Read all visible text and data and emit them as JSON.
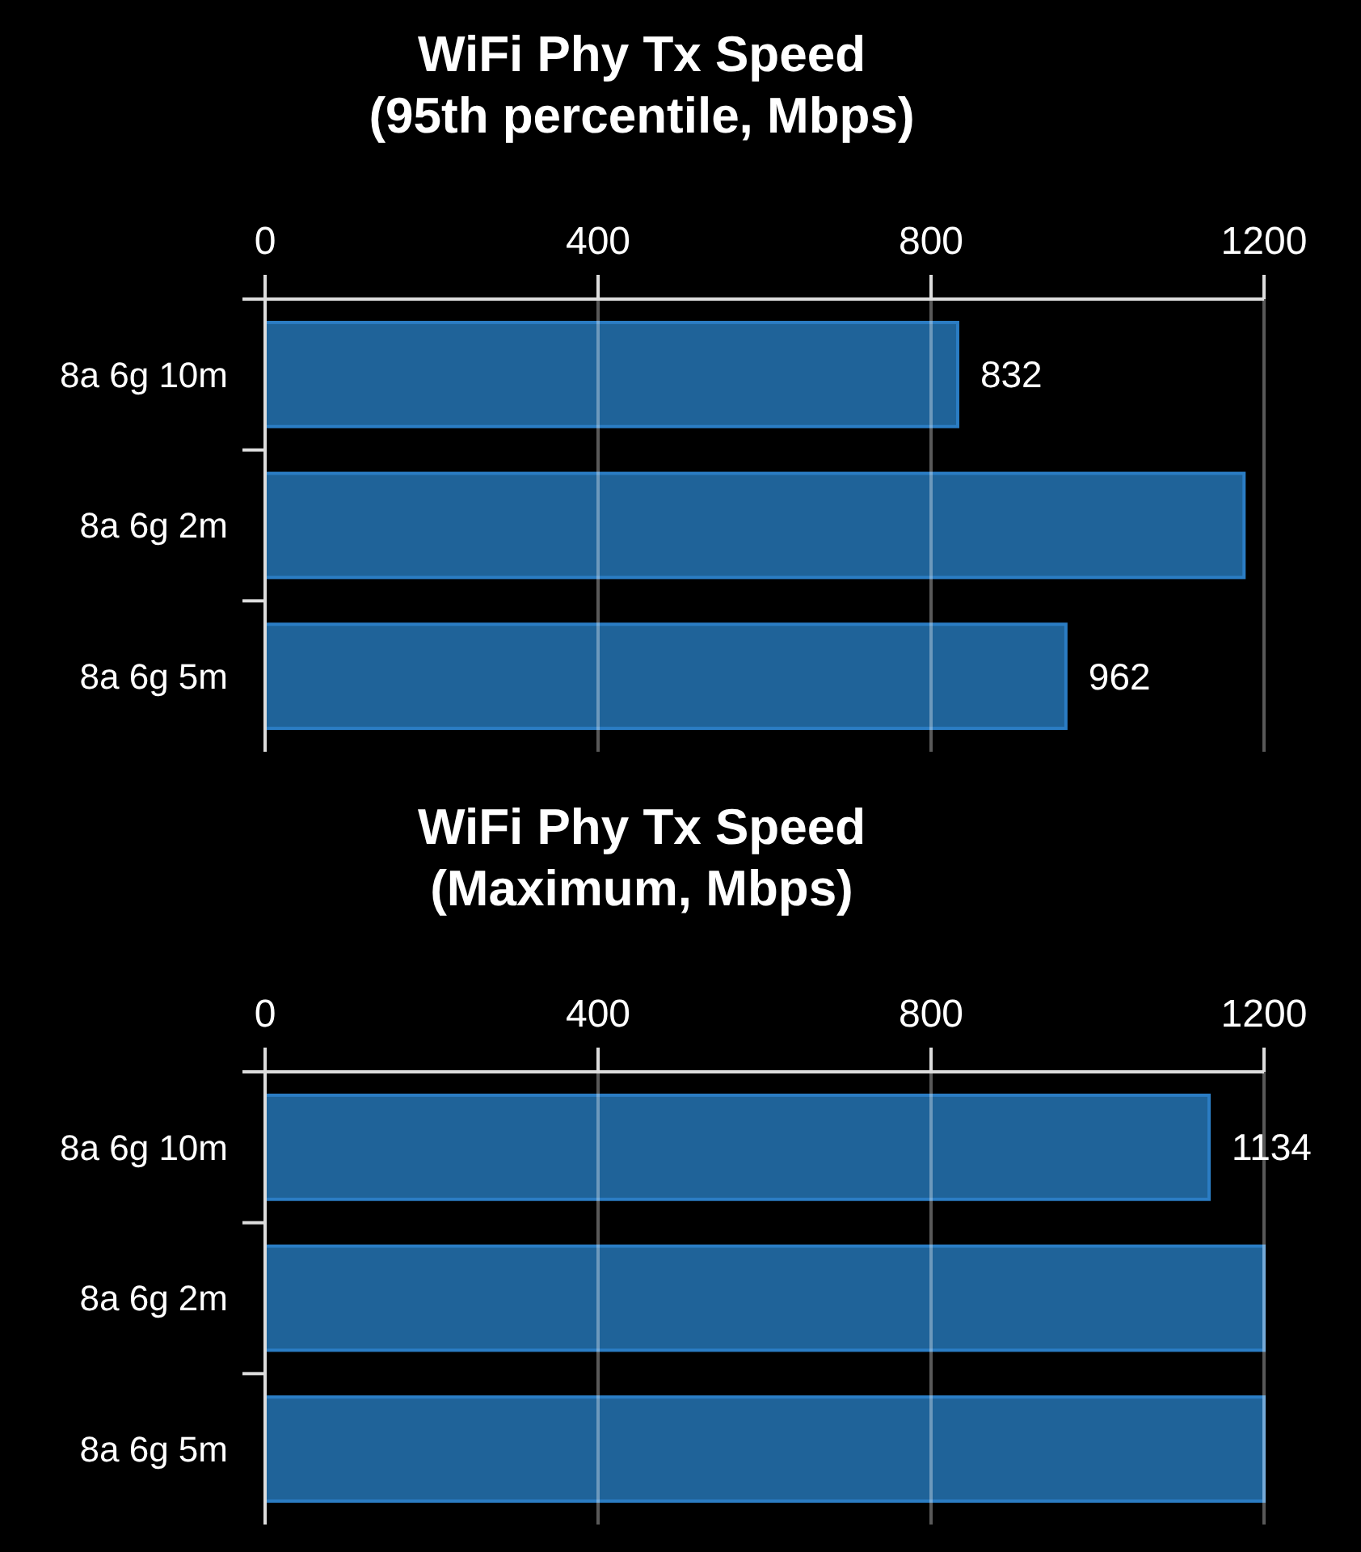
{
  "chart_data": [
    {
      "type": "bar",
      "orientation": "horizontal",
      "title": "WiFi Phy Tx Speed\n(95th percentile, Mbps)",
      "categories": [
        "8a 6g 10m",
        "8a 6g 2m",
        "8a 6g 5m"
      ],
      "values": [
        832,
        1176,
        962
      ],
      "value_labels": [
        "832",
        null,
        "962"
      ],
      "color": "#1f6399",
      "xlim": [
        0,
        1200
      ],
      "xticks": [
        0,
        400,
        800,
        1200
      ],
      "grid": "x"
    },
    {
      "type": "bar",
      "orientation": "horizontal",
      "title": "WiFi Phy Tx Speed\n(Maximum, Mbps)",
      "categories": [
        "8a 6g 10m",
        "8a 6g 2m",
        "8a 6g 5m"
      ],
      "values": [
        1134,
        1200,
        1200
      ],
      "value_labels": [
        "1134",
        null,
        null
      ],
      "color": "#1f6399",
      "xlim": [
        0,
        1200
      ],
      "xticks": [
        0,
        400,
        800,
        1200
      ],
      "grid": "x"
    }
  ]
}
